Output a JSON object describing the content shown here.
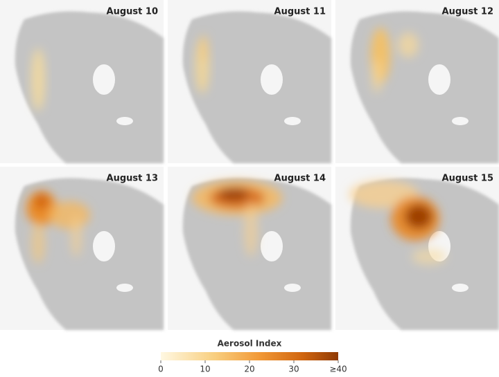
{
  "panels": [
    {
      "label": "August 10"
    },
    {
      "label": "August 11"
    },
    {
      "label": "August 12"
    },
    {
      "label": "August 13"
    },
    {
      "label": "August 14"
    },
    {
      "label": "August 15"
    }
  ],
  "colorbar": {
    "title": "Aerosol Index",
    "range": [
      0,
      40
    ],
    "ticks": [
      0,
      10,
      20,
      30,
      {
        "value": 40,
        "label": "≥40"
      }
    ]
  }
}
